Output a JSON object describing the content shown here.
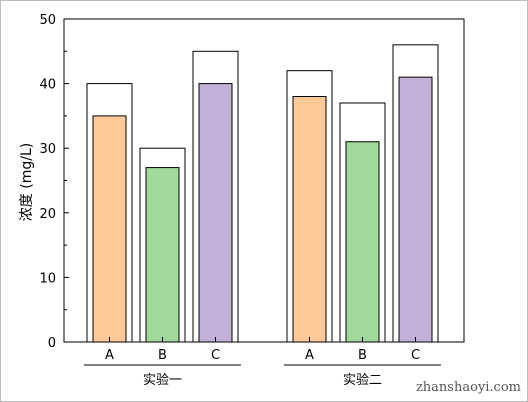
{
  "chart_data": {
    "type": "bar",
    "ylabel": "浓度 (mg/L)",
    "ylim": [
      0,
      50
    ],
    "yticks": [
      0,
      10,
      20,
      30,
      40,
      50
    ],
    "groups": [
      {
        "name": "实验一",
        "bars": [
          {
            "category": "A",
            "outer": 40,
            "inner": 35,
            "color": "#fdc998"
          },
          {
            "category": "B",
            "outer": 30,
            "inner": 27,
            "color": "#a1d99b"
          },
          {
            "category": "C",
            "outer": 45,
            "inner": 40,
            "color": "#c2b0d8"
          }
        ]
      },
      {
        "name": "实验二",
        "bars": [
          {
            "category": "A",
            "outer": 42,
            "inner": 38,
            "color": "#fdc998"
          },
          {
            "category": "B",
            "outer": 37,
            "inner": 31,
            "color": "#a1d99b"
          },
          {
            "category": "C",
            "outer": 46,
            "inner": 41,
            "color": "#c2b0d8"
          }
        ]
      }
    ]
  },
  "watermark": "zhanshaoyi.com"
}
